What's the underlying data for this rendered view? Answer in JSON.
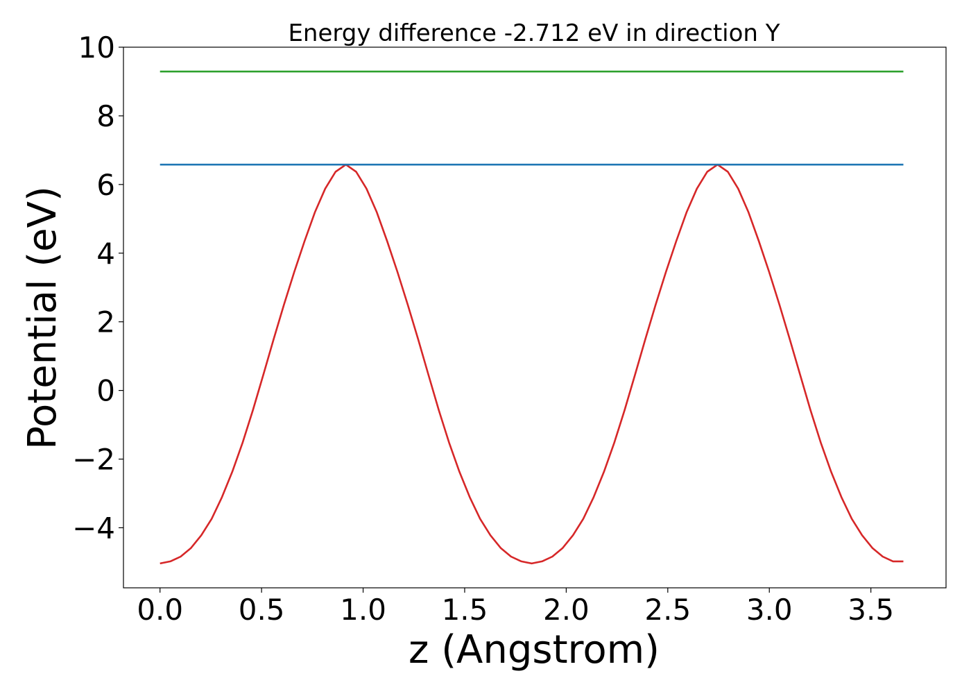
{
  "chart_data": {
    "type": "line",
    "title": "Energy difference -2.712 eV in direction Y",
    "xlabel": "z (Angstrom)",
    "ylabel": "Potential (eV)",
    "xlim": [
      -0.18,
      3.87
    ],
    "ylim": [
      -5.75,
      10
    ],
    "xticks": [
      0.0,
      0.5,
      1.0,
      1.5,
      2.0,
      2.5,
      3.0,
      3.5
    ],
    "xtick_labels": [
      "0.0",
      "0.5",
      "1.0",
      "1.5",
      "2.0",
      "2.5",
      "3.0",
      "3.5"
    ],
    "yticks": [
      -4,
      -2,
      0,
      2,
      4,
      6,
      8,
      10
    ],
    "ytick_labels": [
      "−4",
      "−2",
      "0",
      "2",
      "4",
      "6",
      "8",
      "10"
    ],
    "grid": false,
    "series": [
      {
        "color": "#d62728",
        "x": [
          0.0,
          0.0508,
          0.1017,
          0.1525,
          0.2033,
          0.2542,
          0.305,
          0.3558,
          0.4067,
          0.4575,
          0.5083,
          0.5592,
          0.61,
          0.6608,
          0.7117,
          0.7625,
          0.8133,
          0.8642,
          0.915,
          0.9658,
          1.0167,
          1.0675,
          1.1183,
          1.1692,
          1.22,
          1.2708,
          1.3217,
          1.3725,
          1.4233,
          1.4742,
          1.525,
          1.5758,
          1.6267,
          1.6775,
          1.7283,
          1.7792,
          1.83,
          1.8808,
          1.9317,
          1.9825,
          2.0333,
          2.0842,
          2.135,
          2.1858,
          2.2367,
          2.2875,
          2.3383,
          2.3892,
          2.44,
          2.4908,
          2.5417,
          2.5925,
          2.6433,
          2.6942,
          2.745,
          2.7958,
          2.8467,
          2.8975,
          2.9483,
          2.9992,
          3.05,
          3.1008,
          3.1517,
          3.2025,
          3.2533,
          3.3042,
          3.355,
          3.4058,
          3.4567,
          3.5075,
          3.5583,
          3.6092,
          3.66
        ],
        "y": [
          -5.04,
          -4.98,
          -4.84,
          -4.59,
          -4.22,
          -3.74,
          -3.11,
          -2.37,
          -1.52,
          -0.57,
          0.45,
          1.49,
          2.49,
          3.45,
          4.35,
          5.19,
          5.88,
          6.37,
          6.58,
          6.37,
          5.88,
          5.19,
          4.35,
          3.45,
          2.49,
          1.49,
          0.45,
          -0.57,
          -1.52,
          -2.37,
          -3.11,
          -3.74,
          -4.22,
          -4.59,
          -4.84,
          -4.98,
          -5.04,
          -4.98,
          -4.84,
          -4.59,
          -4.22,
          -3.74,
          -3.11,
          -2.37,
          -1.52,
          -0.57,
          0.45,
          1.49,
          2.49,
          3.45,
          4.35,
          5.19,
          5.88,
          6.37,
          6.58,
          6.37,
          5.88,
          5.19,
          4.35,
          3.45,
          2.49,
          1.49,
          0.45,
          -0.57,
          -1.52,
          -2.37,
          -3.11,
          -3.74,
          -4.22,
          -4.59,
          -4.84,
          -4.98,
          -4.98
        ]
      },
      {
        "color": "#1f77b4",
        "x": [
          0.0,
          3.66
        ],
        "y": [
          6.58,
          6.58
        ]
      },
      {
        "color": "#2ca02c",
        "x": [
          0.0,
          3.66
        ],
        "y": [
          9.29,
          9.29
        ]
      }
    ]
  }
}
